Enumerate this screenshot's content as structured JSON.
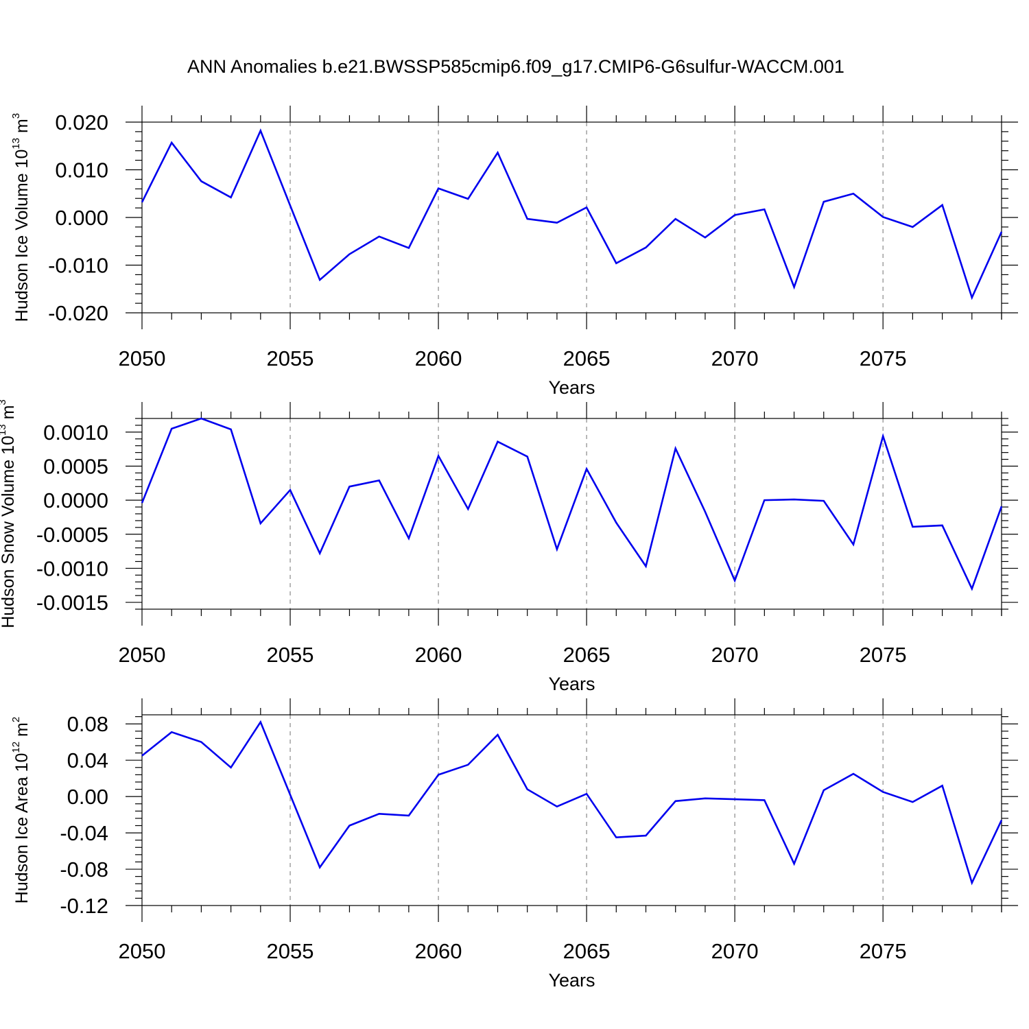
{
  "title": "ANN Anomalies b.e21.BWSSP585cmip6.f09_g17.CMIP6-G6sulfur-WACCM.001",
  "colors": {
    "line": "#0000ee",
    "grid": "#888888",
    "axis": "#000000"
  },
  "chart_data": [
    {
      "type": "line",
      "ylabel": "Hudson Ice Volume 10",
      "ylabel_exp": "13",
      "ylabel_unit": " m",
      "ylabel_unit_exp": "3",
      "xlabel": "Years",
      "xlim": [
        2050,
        2079
      ],
      "ylim": [
        -0.02,
        0.02
      ],
      "xticks": [
        "2050",
        "2055",
        "2060",
        "2065",
        "2070",
        "2075"
      ],
      "yticks": [
        "0.020",
        "0.010",
        "0.000",
        "-0.010",
        "-0.020"
      ],
      "ytick_values": [
        0.02,
        0.01,
        0.0,
        -0.01,
        -0.02
      ],
      "grid": "dashed vertical at 2055, 2060, 2065, 2070, 2075",
      "x": [
        2050,
        2051,
        2052,
        2053,
        2054,
        2055,
        2056,
        2057,
        2058,
        2059,
        2060,
        2061,
        2062,
        2063,
        2064,
        2065,
        2066,
        2067,
        2068,
        2069,
        2070,
        2071,
        2072,
        2073,
        2074,
        2075,
        2076,
        2077,
        2078,
        2079
      ],
      "values": [
        0.0032,
        0.0157,
        0.0076,
        0.0042,
        0.0182,
        0.0025,
        -0.0131,
        -0.0077,
        -0.004,
        -0.0064,
        0.0061,
        0.0039,
        0.0136,
        -0.0003,
        -0.0011,
        0.0021,
        -0.0096,
        -0.0063,
        -0.0003,
        -0.0042,
        0.0005,
        0.0017,
        -0.0146,
        0.0033,
        0.005,
        0.0001,
        -0.002,
        0.0026,
        -0.0168,
        -0.003
      ]
    },
    {
      "type": "line",
      "ylabel": "Hudson Snow Volume 10",
      "ylabel_exp": "13",
      "ylabel_unit": " m",
      "ylabel_unit_exp": "3",
      "xlabel": "Years",
      "xlim": [
        2050,
        2079
      ],
      "ylim": [
        -0.0016,
        0.0012
      ],
      "xticks": [
        "2050",
        "2055",
        "2060",
        "2065",
        "2070",
        "2075"
      ],
      "yticks": [
        "0.0010",
        "0.0005",
        "0.0000",
        "-0.0005",
        "-0.0010",
        "-0.0015"
      ],
      "ytick_values": [
        0.001,
        0.0005,
        0.0,
        -0.0005,
        -0.001,
        -0.0015
      ],
      "grid": "dashed vertical at 2055, 2060, 2065, 2070, 2075",
      "x": [
        2050,
        2051,
        2052,
        2053,
        2054,
        2055,
        2056,
        2057,
        2058,
        2059,
        2060,
        2061,
        2062,
        2063,
        2064,
        2065,
        2066,
        2067,
        2068,
        2069,
        2070,
        2071,
        2072,
        2073,
        2074,
        2075,
        2076,
        2077,
        2078,
        2079
      ],
      "values": [
        -4e-05,
        0.00105,
        0.0012,
        0.00104,
        -0.00034,
        0.00015,
        -0.00078,
        0.0002,
        0.00029,
        -0.00056,
        0.00065,
        -0.00013,
        0.00086,
        0.00064,
        -0.00072,
        0.00046,
        -0.00033,
        -0.00097,
        0.00076,
        -0.00017,
        -0.00118,
        0.0,
        1e-05,
        -1e-05,
        -0.00065,
        0.00094,
        -0.00039,
        -0.00037,
        -0.0013,
        -9e-05
      ]
    },
    {
      "type": "line",
      "ylabel": "Hudson Ice Area 10",
      "ylabel_exp": "12",
      "ylabel_unit": " m",
      "ylabel_unit_exp": "2",
      "xlabel": "Years",
      "xlim": [
        2050,
        2079
      ],
      "ylim": [
        -0.12,
        0.09
      ],
      "xticks": [
        "2050",
        "2055",
        "2060",
        "2065",
        "2070",
        "2075"
      ],
      "yticks": [
        "0.08",
        "0.04",
        "0.00",
        "-0.04",
        "-0.08",
        "-0.12"
      ],
      "ytick_values": [
        0.08,
        0.04,
        0.0,
        -0.04,
        -0.08,
        -0.12
      ],
      "grid": "dashed vertical at 2055, 2060, 2065, 2070, 2075",
      "x": [
        2050,
        2051,
        2052,
        2053,
        2054,
        2055,
        2056,
        2057,
        2058,
        2059,
        2060,
        2061,
        2062,
        2063,
        2064,
        2065,
        2066,
        2067,
        2068,
        2069,
        2070,
        2071,
        2072,
        2073,
        2074,
        2075,
        2076,
        2077,
        2078,
        2079
      ],
      "values": [
        0.045,
        0.071,
        0.06,
        0.032,
        0.082,
        0.002,
        -0.078,
        -0.032,
        -0.019,
        -0.021,
        0.024,
        0.035,
        0.068,
        0.008,
        -0.011,
        0.003,
        -0.045,
        -0.043,
        -0.005,
        -0.002,
        -0.003,
        -0.004,
        -0.074,
        0.007,
        0.025,
        0.005,
        -0.006,
        0.012,
        -0.095,
        -0.026
      ]
    }
  ]
}
